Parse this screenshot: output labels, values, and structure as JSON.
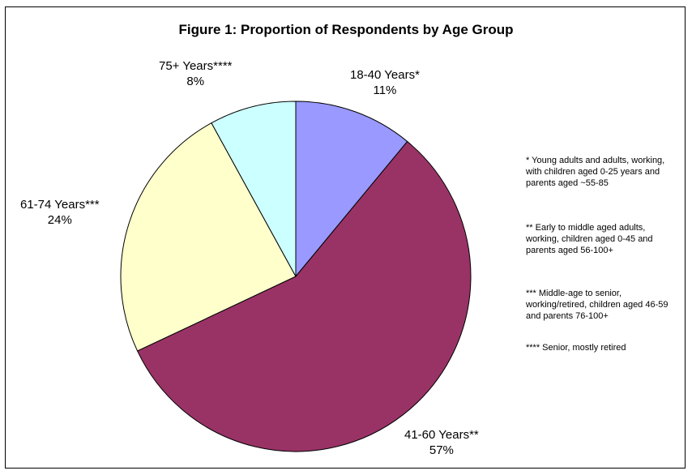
{
  "chart_data": {
    "type": "pie",
    "title": "Figure 1: Proportion of Respondents by Age Group",
    "categories": [
      "18-40 Years*",
      "41-60 Years**",
      "61-74 Years***",
      "75+ Years****"
    ],
    "values": [
      11,
      57,
      24,
      8
    ],
    "value_labels": [
      "11%",
      "57%",
      "24%",
      "8%"
    ],
    "colors": [
      "#9999ff",
      "#993366",
      "#ffffcc",
      "#ccffff"
    ],
    "stroke": "#000000"
  },
  "notes": [
    "* Young adults and adults, working, with children aged 0-25 years and parents aged ~55-85",
    "** Early to middle aged adults, working, children aged 0-45 and parents aged 56-100+",
    "*** Middle-age to senior, working/retired, children aged 46-59 and parents 76-100+",
    "**** Senior, mostly retired"
  ]
}
